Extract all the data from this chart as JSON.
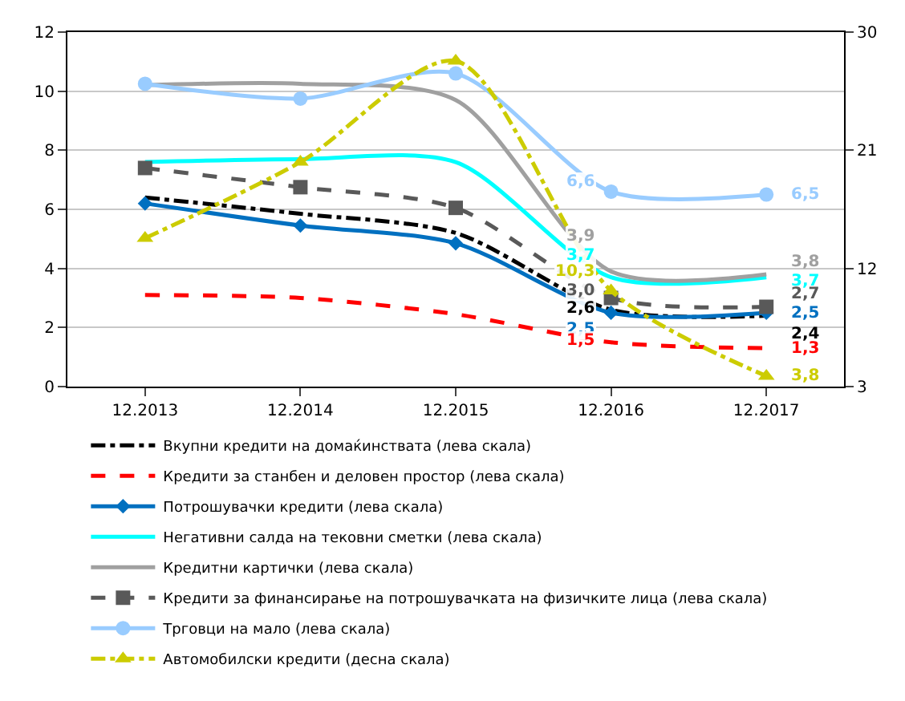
{
  "chart_data": {
    "type": "line",
    "categories": [
      "12.2013",
      "12.2014",
      "12.2015",
      "12.2016",
      "12.2017"
    ],
    "ylim": [
      0,
      12
    ],
    "yticks": [
      0,
      2,
      4,
      6,
      8,
      10,
      12
    ],
    "y2lim": [
      3,
      30
    ],
    "y2ticks": [
      3,
      12,
      21,
      30
    ],
    "grid": "y",
    "legend": "bottom",
    "series": [
      {
        "name": "Вкупни кредити на домаќинствата (лева скала)",
        "color": "#000000",
        "line_style": "dashdot",
        "marker": "none",
        "values": [
          6.4,
          5.85,
          5.2,
          2.6,
          2.4
        ],
        "value_labels": [
          null,
          null,
          null,
          "2,6",
          "2,4"
        ]
      },
      {
        "name": "Кредити за станбен и деловен простор (лева скала)",
        "color": "#ff0000",
        "line_style": "dashed",
        "marker": "none",
        "values": [
          3.1,
          3.0,
          2.45,
          1.5,
          1.3
        ],
        "value_labels": [
          null,
          null,
          null,
          "1,5",
          "1,3"
        ]
      },
      {
        "name": "Потрошувачки кредити (лева скала)",
        "color": "#0070c0",
        "line_style": "solid",
        "marker": "diamond",
        "values": [
          6.2,
          5.45,
          4.85,
          2.5,
          2.5
        ],
        "value_labels": [
          null,
          null,
          null,
          "2,5",
          "2,5"
        ]
      },
      {
        "name": "Негативни салда на тековни сметки (лева скала)",
        "color": "#00ffff",
        "line_style": "solid",
        "marker": "none",
        "values": [
          7.6,
          7.7,
          7.6,
          3.7,
          3.7
        ],
        "value_labels": [
          null,
          null,
          null,
          "3,7",
          "3,7"
        ]
      },
      {
        "name": "Кредитни картички (лева скала)",
        "color": "#a0a0a0",
        "line_style": "solid",
        "marker": "none",
        "values": [
          10.2,
          10.25,
          9.7,
          3.9,
          3.8
        ],
        "value_labels": [
          null,
          null,
          null,
          "3,9",
          "3,8"
        ]
      },
      {
        "name": "Кредити за финансирање на потрошувачката на физичките лица (лева скала)",
        "color": "#595959",
        "line_style": "dashed",
        "marker": "square",
        "values": [
          7.4,
          6.75,
          6.05,
          3.0,
          2.7
        ],
        "value_labels": [
          null,
          null,
          null,
          "3,0",
          "2,7"
        ]
      },
      {
        "name": "Трговци на мало (лева скала)",
        "color": "#99ccff",
        "line_style": "solid",
        "marker": "circle",
        "values": [
          10.25,
          9.75,
          10.6,
          6.6,
          6.5
        ],
        "value_labels": [
          null,
          null,
          null,
          "6,6",
          "6,5"
        ]
      },
      {
        "name": "Автомобилски кредити (десна скала)",
        "color": "#cccc00",
        "line_style": "dashdot",
        "marker": "triangle",
        "axis": "y2",
        "values": [
          14.3,
          20.1,
          27.8,
          10.3,
          3.8
        ],
        "value_labels": [
          null,
          null,
          null,
          "10,3",
          "3,8"
        ]
      }
    ]
  }
}
